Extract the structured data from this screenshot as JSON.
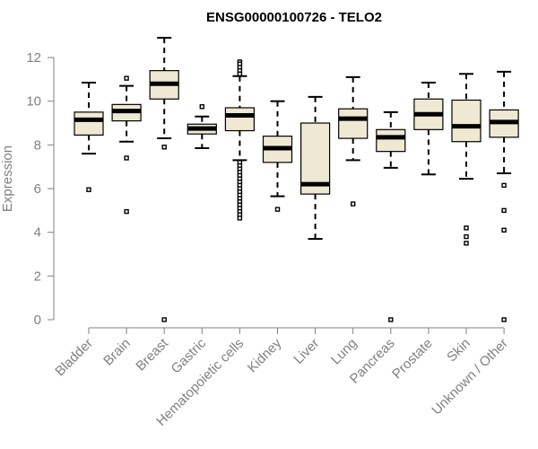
{
  "chart_data": {
    "type": "boxplot",
    "title": "ENSG00000100726 - TELO2",
    "xlabel": "",
    "ylabel": "Expression",
    "ylim": [
      0,
      13
    ],
    "yticks": [
      0,
      2,
      4,
      6,
      8,
      10,
      12
    ],
    "grid": false,
    "legend": "none",
    "colors": {
      "box_fill": "#efe9d3",
      "box_stroke": "#000000",
      "median": "#000000",
      "axis": "#808080"
    },
    "categories": [
      "Bladder",
      "Brain",
      "Breast",
      "Gastric",
      "Hematopoietic cells",
      "Kidney",
      "Liver",
      "Lung",
      "Pancreas",
      "Prostate",
      "Skin",
      "Unknown / Other"
    ],
    "boxes": [
      {
        "category": "Bladder",
        "whisker_low": 7.6,
        "q1": 8.45,
        "median": 9.15,
        "q3": 9.5,
        "whisker_high": 10.85,
        "outliers": [
          5.95
        ]
      },
      {
        "category": "Brain",
        "whisker_low": 8.15,
        "q1": 9.1,
        "median": 9.55,
        "q3": 9.85,
        "whisker_high": 10.7,
        "outliers": [
          11.05,
          7.4,
          4.95
        ]
      },
      {
        "category": "Breast",
        "whisker_low": 8.3,
        "q1": 10.1,
        "median": 10.8,
        "q3": 11.4,
        "whisker_high": 12.9,
        "outliers": [
          7.9,
          0
        ]
      },
      {
        "category": "Gastric",
        "whisker_low": 7.85,
        "q1": 8.5,
        "median": 8.75,
        "q3": 8.95,
        "whisker_high": 9.3,
        "outliers": [
          9.75
        ]
      },
      {
        "category": "Hematopoietic cells",
        "whisker_low": 7.3,
        "q1": 8.65,
        "median": 9.35,
        "q3": 9.7,
        "whisker_high": 11.15,
        "outliers": [
          11.8,
          11.7,
          11.55,
          11.4,
          11.25,
          7.2,
          7.05,
          6.9,
          6.75,
          6.6,
          6.45,
          6.3,
          6.15,
          6.0,
          5.85,
          5.7,
          5.55,
          5.4,
          5.25,
          5.1,
          4.95,
          4.8,
          4.65
        ]
      },
      {
        "category": "Kidney",
        "whisker_low": 5.65,
        "q1": 7.2,
        "median": 7.85,
        "q3": 8.4,
        "whisker_high": 10.0,
        "outliers": [
          5.05
        ]
      },
      {
        "category": "Liver",
        "whisker_low": 3.7,
        "q1": 5.75,
        "median": 6.2,
        "q3": 9.0,
        "whisker_high": 10.2,
        "outliers": []
      },
      {
        "category": "Lung",
        "whisker_low": 7.3,
        "q1": 8.3,
        "median": 9.2,
        "q3": 9.65,
        "whisker_high": 11.1,
        "outliers": [
          5.3
        ]
      },
      {
        "category": "Pancreas",
        "whisker_low": 6.95,
        "q1": 7.7,
        "median": 8.35,
        "q3": 8.7,
        "whisker_high": 9.5,
        "outliers": [
          0
        ]
      },
      {
        "category": "Prostate",
        "whisker_low": 6.65,
        "q1": 8.7,
        "median": 9.4,
        "q3": 10.1,
        "whisker_high": 10.85,
        "outliers": []
      },
      {
        "category": "Skin",
        "whisker_low": 6.45,
        "q1": 8.15,
        "median": 8.85,
        "q3": 10.05,
        "whisker_high": 11.25,
        "outliers": [
          4.2,
          3.8,
          3.5
        ]
      },
      {
        "category": "Unknown / Other",
        "whisker_low": 6.7,
        "q1": 8.35,
        "median": 9.05,
        "q3": 9.6,
        "whisker_high": 11.35,
        "outliers": [
          6.15,
          5.0,
          4.1,
          0
        ]
      }
    ]
  }
}
